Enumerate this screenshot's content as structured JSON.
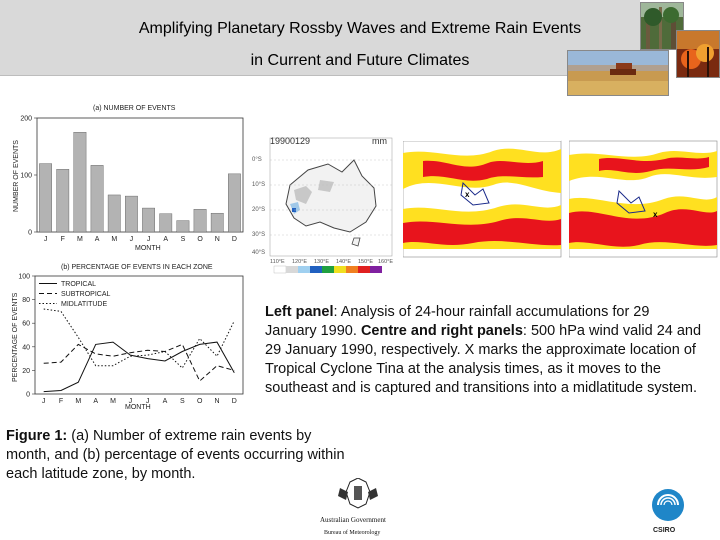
{
  "header": {
    "title_line1": "Amplifying Planetary Rossby Waves and Extreme Rain Events",
    "title_line2": "in Current and Future Climates"
  },
  "colors": {
    "header_bg": "#d9d9d9",
    "rain_red": "#e8141c",
    "rain_yellow": "#ffe020"
  },
  "photos": [
    "forest-photo",
    "bushfire-photo",
    "wheat-harvest-photo"
  ],
  "chart_data": [
    {
      "type": "bar",
      "title": "(a) NUMBER OF EVENTS",
      "ylabel": "NUMBER OF EVENTS",
      "xlabel": "MONTH",
      "categories": [
        "J",
        "F",
        "M",
        "A",
        "M",
        "J",
        "J",
        "A",
        "S",
        "O",
        "N",
        "D"
      ],
      "values": [
        120,
        110,
        175,
        117,
        65,
        63,
        42,
        32,
        20,
        40,
        33,
        102
      ],
      "ylim": [
        0,
        200
      ],
      "yticks": [
        "0",
        "100",
        "200"
      ]
    },
    {
      "type": "line",
      "title": "(b) PERCENTAGE OF EVENTS IN EACH ZONE",
      "ylabel": "PERCENTAGE OF EVENTS",
      "xlabel": "MONTH",
      "categories": [
        "J",
        "F",
        "M",
        "A",
        "M",
        "J",
        "J",
        "A",
        "S",
        "O",
        "N",
        "D"
      ],
      "ylim": [
        0,
        100
      ],
      "yticks": [
        "0",
        "20",
        "40",
        "60",
        "80",
        "100"
      ],
      "series": [
        {
          "name": "TROPICAL",
          "style": "solid",
          "values": [
            2,
            3,
            10,
            42,
            44,
            33,
            30,
            28,
            36,
            42,
            44,
            18
          ]
        },
        {
          "name": "SUBTROPICAL",
          "style": "dashed",
          "values": [
            26,
            27,
            42,
            34,
            32,
            35,
            37,
            36,
            42,
            11,
            24,
            20
          ]
        },
        {
          "name": "MIDLATITUDE",
          "style": "dotted",
          "values": [
            72,
            70,
            48,
            24,
            24,
            32,
            33,
            36,
            22,
            47,
            32,
            62
          ]
        }
      ]
    }
  ],
  "map_panel": {
    "date": "19900129",
    "units": "mm",
    "lat_labels": [
      "0°S",
      "10°S",
      "20°S",
      "30°S",
      "40°S"
    ],
    "lon_labels": [
      "110°E",
      "120°E",
      "130°E",
      "140°E",
      "150°E",
      "160°E"
    ]
  },
  "captions": {
    "right_bold1": "Left panel",
    "right_text1": ": Analysis of 24-hour rainfall accumulations for 29 January 1990. ",
    "right_bold2": "Centre and right panels",
    "right_text2": ": 500 hPa wind valid 24 and 29 January 1990, respectively. X marks the approximate location of Tropical Cyclone Tina at the analysis times, as it moves to the southeast and is captured and transitions into a midlatitude system.",
    "fig_bold": "Figure 1:",
    "fig_text": " (a) Number of extreme rain events by month, and (b) percentage of events occurring within each latitude zone, by month."
  },
  "logos": {
    "bom_line1": "Australian Government",
    "bom_line2": "Bureau of Meteorology",
    "csiro": "CSIRO"
  }
}
